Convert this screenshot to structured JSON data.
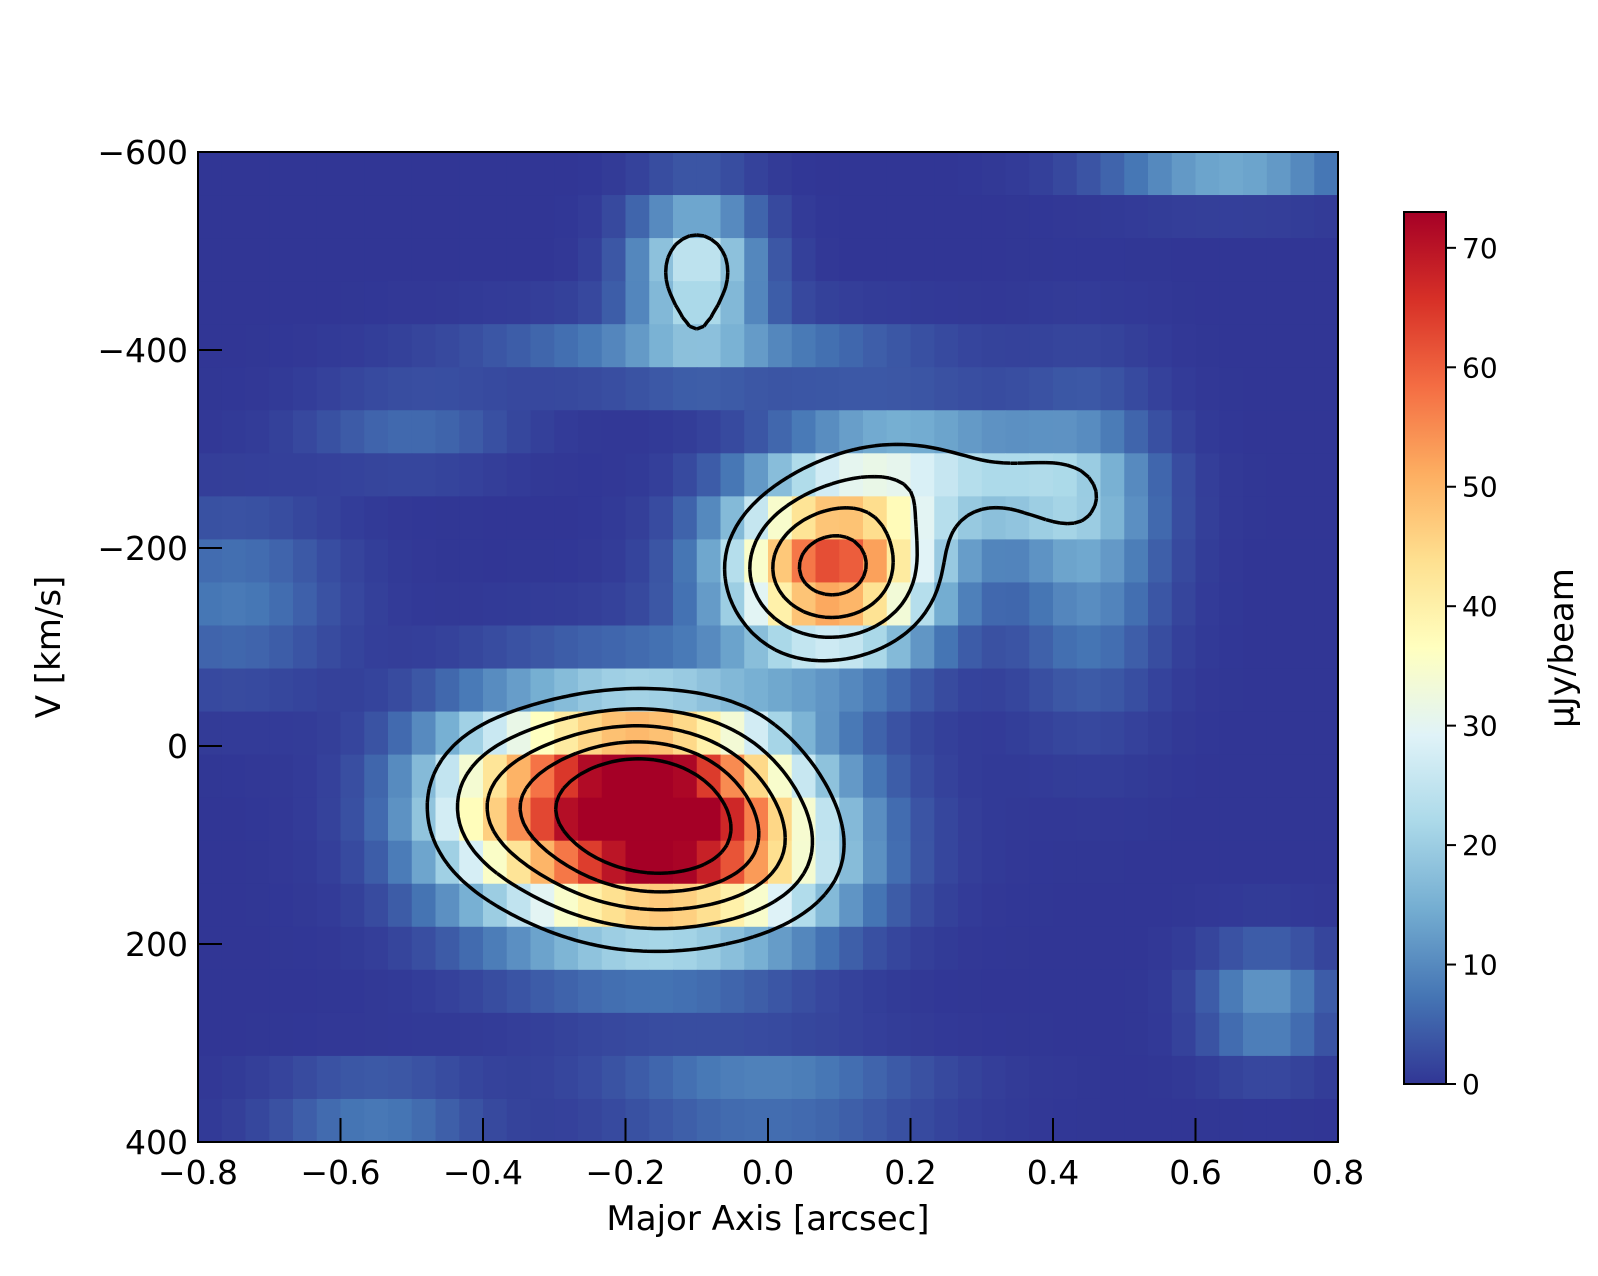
{
  "chart_data": {
    "type": "heatmap",
    "title": "",
    "xlabel": "Major Axis [arcsec]",
    "ylabel": "V [km/s]",
    "xlim": [
      -0.8,
      0.8
    ],
    "ylim": [
      -600,
      400
    ],
    "y_inverted": true,
    "x_ticks": [
      -0.8,
      -0.6,
      -0.4,
      -0.2,
      0.0,
      0.2,
      0.4,
      0.6,
      0.8
    ],
    "x_tick_labels": [
      "−0.8",
      "−0.6",
      "−0.4",
      "−0.2",
      "0.0",
      "0.2",
      "0.4",
      "0.6",
      "0.8"
    ],
    "y_ticks": [
      -600,
      -400,
      -200,
      0,
      200,
      400
    ],
    "y_tick_labels": [
      "−600",
      "−400",
      "−200",
      "0",
      "200",
      "400"
    ],
    "colorbar": {
      "label": "μJy/beam",
      "range": [
        0,
        73
      ],
      "ticks": [
        0,
        10,
        20,
        30,
        40,
        50,
        60,
        70
      ],
      "tick_labels": [
        "0",
        "10",
        "20",
        "30",
        "40",
        "50",
        "60",
        "70"
      ],
      "colormap": "RdYlBu_r",
      "colors": [
        "#313695",
        "#4575b4",
        "#74add1",
        "#abd9e9",
        "#e0f3f8",
        "#ffffbf",
        "#fee090",
        "#fdae61",
        "#f46d43",
        "#d73027",
        "#a50026"
      ]
    },
    "grid": false,
    "emission_components": [
      {
        "x": -0.17,
        "y": 85,
        "sx": 0.15,
        "sy": 75,
        "peak": 73
      },
      {
        "x": 0.09,
        "y": -180,
        "sx": 0.1,
        "sy": 60,
        "peak": 62
      },
      {
        "x": -0.2,
        "y": 20,
        "sx": 0.14,
        "sy": 55,
        "peak": 22
      },
      {
        "x": 0.2,
        "y": -280,
        "sx": 0.1,
        "sy": 40,
        "peak": 18
      },
      {
        "x": 0.38,
        "y": -260,
        "sx": 0.09,
        "sy": 40,
        "peak": 14
      },
      {
        "x": 0.45,
        "y": -200,
        "sx": 0.07,
        "sy": 100,
        "peak": 12
      },
      {
        "x": -0.1,
        "y": -480,
        "sx": 0.06,
        "sy": 50,
        "peak": 26
      },
      {
        "x": -0.4,
        "y": 60,
        "sx": 0.08,
        "sy": 60,
        "peak": 15
      },
      {
        "x": 0.0,
        "y": 120,
        "sx": 0.1,
        "sy": 50,
        "peak": 12
      },
      {
        "x": 0.7,
        "y": 260,
        "sx": 0.06,
        "sy": 40,
        "peak": 12
      },
      {
        "x": 0.65,
        "y": -580,
        "sx": 0.12,
        "sy": 20,
        "peak": 14
      },
      {
        "x": 0.0,
        "y": 350,
        "sx": 0.15,
        "sy": 30,
        "peak": 10
      },
      {
        "x": -0.55,
        "y": 370,
        "sx": 0.1,
        "sy": 30,
        "peak": 8
      },
      {
        "x": -0.5,
        "y": -320,
        "sx": 0.1,
        "sy": 30,
        "peak": 6
      },
      {
        "x": -0.1,
        "y": -400,
        "sx": 0.2,
        "sy": 25,
        "peak": 10
      },
      {
        "x": -0.75,
        "y": -150,
        "sx": 0.1,
        "sy": 60,
        "peak": 8
      }
    ],
    "contour_levels": [
      20,
      32,
      44,
      56,
      68
    ]
  }
}
